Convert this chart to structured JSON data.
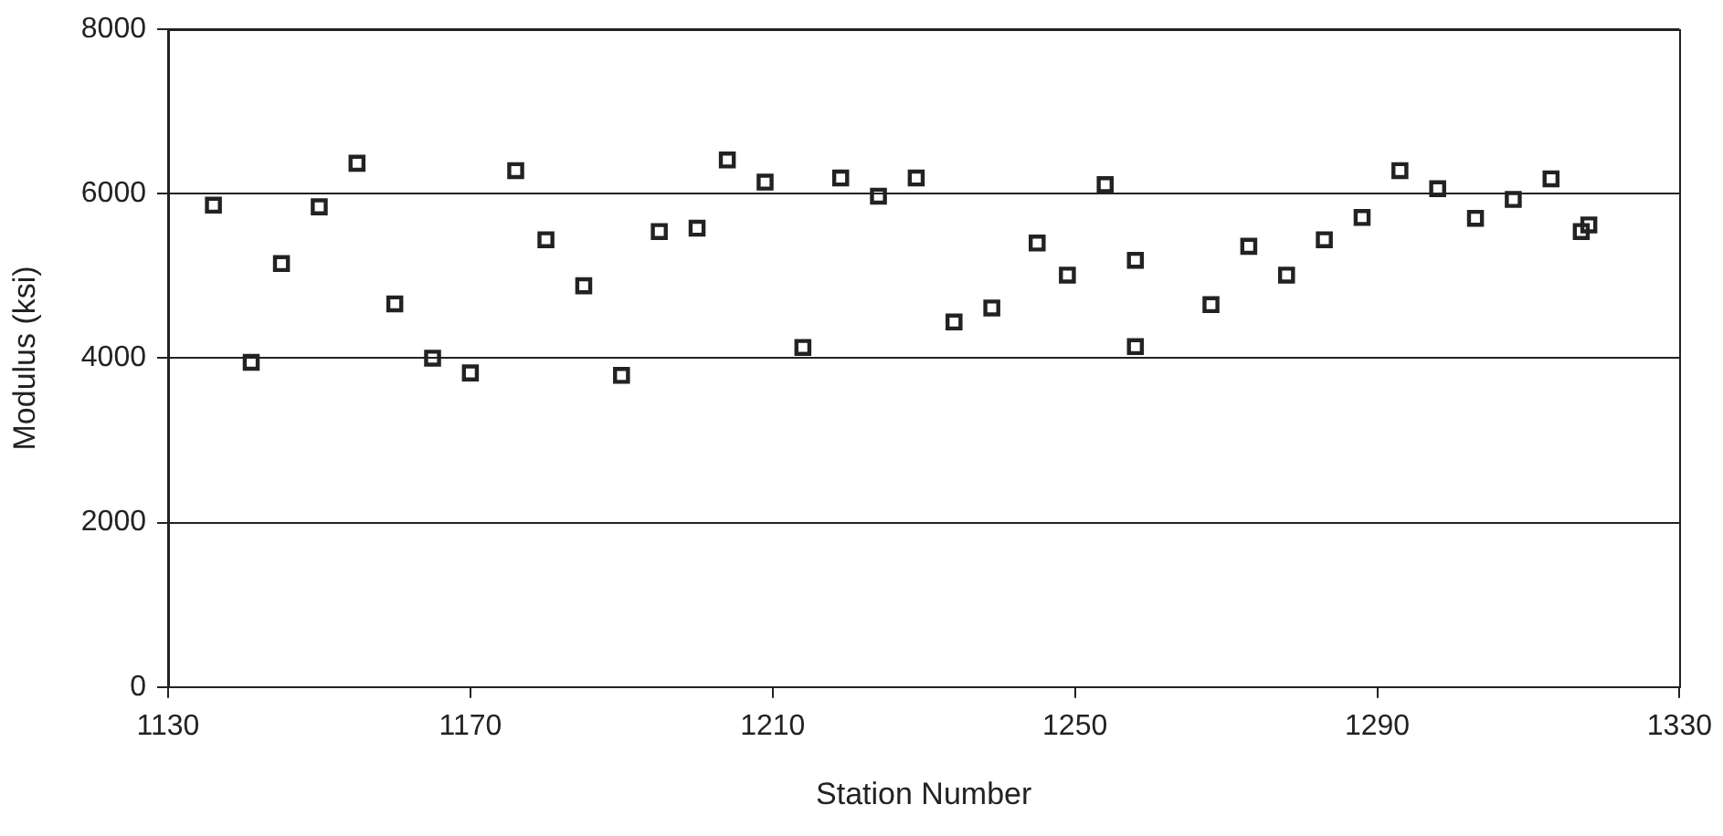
{
  "chart_data": {
    "type": "scatter",
    "xlabel": "Station Number",
    "ylabel": "Modulus (ksi)",
    "xlim": [
      1130,
      1330
    ],
    "xticks": [
      1130,
      1170,
      1210,
      1250,
      1290,
      1330
    ],
    "ylim": [
      0,
      8000
    ],
    "yticks": [
      0,
      2000,
      4000,
      6000,
      8000
    ],
    "grid": "y",
    "legend": false,
    "marker": "square",
    "series": [
      {
        "color": "#222222",
        "x": [
          1136,
          1141,
          1145,
          1150,
          1155,
          1160,
          1165,
          1170,
          1176,
          1180,
          1185,
          1190,
          1195,
          1200,
          1204,
          1209,
          1214,
          1219,
          1224,
          1229,
          1234,
          1239,
          1245,
          1249,
          1254,
          1258,
          1258,
          1268,
          1273,
          1278,
          1283,
          1288,
          1293,
          1298,
          1303,
          1308,
          1313,
          1317,
          1318
        ],
        "values": [
          5860,
          3950,
          5150,
          5840,
          6370,
          4660,
          4000,
          3820,
          6280,
          5440,
          4880,
          3790,
          5540,
          5580,
          6410,
          6140,
          4130,
          6190,
          5970,
          6190,
          4440,
          4610,
          5400,
          5010,
          6110,
          5190,
          4140,
          4650,
          5360,
          5010,
          5440,
          5710,
          6280,
          6060,
          5700,
          5930,
          6180,
          5540,
          5620
        ]
      }
    ]
  }
}
